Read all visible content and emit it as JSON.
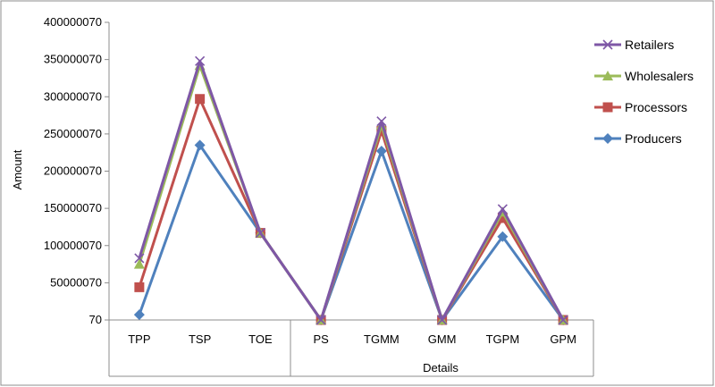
{
  "chart_data": {
    "type": "line",
    "title": "",
    "xlabel": "Details",
    "ylabel": "Amount",
    "categories": [
      "TPP",
      "TSP",
      "TOE",
      "PS",
      "TGMM",
      "GMM",
      "TGPM",
      "GPM"
    ],
    "yticks": [
      "70",
      "50000070",
      "100000070",
      "150000070",
      "200000070",
      "250000070",
      "300000070",
      "350000070",
      "400000070"
    ],
    "ylim": [
      70,
      400000070
    ],
    "legend_position": "right",
    "series": [
      {
        "name": "Retailers",
        "color": "#7E57A6",
        "marker": "x",
        "values": [
          83000070,
          348000070,
          117000070,
          70,
          267000070,
          70,
          149000070,
          70
        ]
      },
      {
        "name": "Wholesalers",
        "color": "#9BBB59",
        "marker": "triangle",
        "values": [
          75000070,
          342000070,
          117000070,
          70,
          262000070,
          70,
          145000070,
          70
        ]
      },
      {
        "name": "Processors",
        "color": "#C0504D",
        "marker": "square",
        "values": [
          44000070,
          297000070,
          117000070,
          70,
          254000070,
          70,
          137000070,
          70
        ]
      },
      {
        "name": "Producers",
        "color": "#4F81BD",
        "marker": "diamond",
        "values": [
          7000070,
          235000070,
          117000070,
          70,
          227000070,
          70,
          112000070,
          70
        ]
      }
    ],
    "frame": {
      "border_color": "#8c8c8c"
    }
  }
}
